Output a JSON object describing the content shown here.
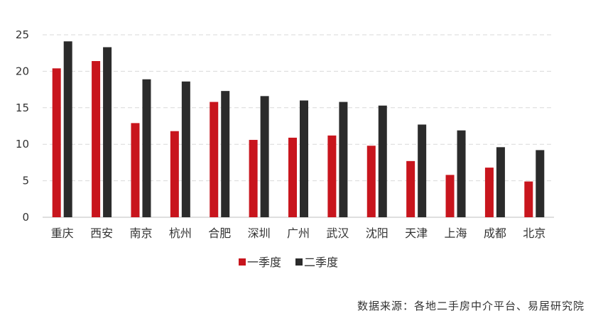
{
  "chart_data": {
    "type": "bar",
    "categories": [
      "重庆",
      "西安",
      "南京",
      "杭州",
      "合肥",
      "深圳",
      "广州",
      "武汉",
      "沈阳",
      "天津",
      "上海",
      "成都",
      "北京"
    ],
    "series": [
      {
        "name": "一季度",
        "color": "#c8151d",
        "values": [
          20.4,
          21.4,
          12.9,
          11.8,
          15.8,
          10.6,
          10.9,
          11.2,
          9.8,
          7.7,
          5.8,
          6.8,
          4.9
        ]
      },
      {
        "name": "二季度",
        "color": "#2b2b2b",
        "values": [
          24.1,
          23.3,
          18.9,
          18.6,
          17.3,
          16.6,
          16.0,
          15.8,
          15.3,
          12.7,
          11.9,
          9.6,
          9.2
        ]
      }
    ],
    "ylim": [
      0,
      25
    ],
    "yticks": [
      0,
      5,
      10,
      15,
      20,
      25
    ],
    "grid": true,
    "legend_position": "bottom",
    "title": "",
    "xlabel": "",
    "ylabel": ""
  },
  "source_note": "数据来源：各地二手房中介平台、易居研究院"
}
